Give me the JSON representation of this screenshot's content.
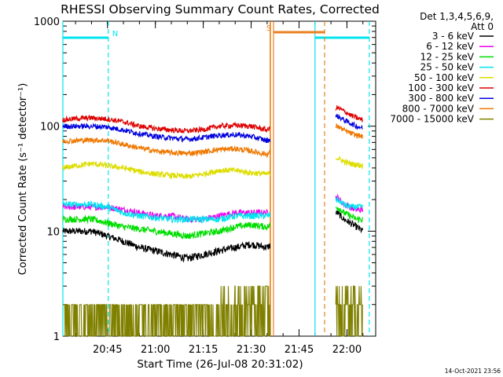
{
  "chart_data": {
    "type": "line",
    "title": "RHESSI Observing Summary Count Rates, Corrected",
    "xlabel": "Start Time (26-Jul-08 20:31:02)",
    "ylabel": "Corrected Count Rate (s⁻¹ detector⁻¹)",
    "yscale": "log",
    "ylim": [
      1,
      1000
    ],
    "xlim": [
      "20:31:02",
      "22:09:00"
    ],
    "x_ticks": [
      "20:45",
      "21:00",
      "21:15",
      "21:30",
      "21:45",
      "22:00"
    ],
    "y_ticks": [
      "1",
      "10",
      "100",
      "1000"
    ],
    "legend_header": [
      "Det 1,3,4,5,6,9,",
      "Att 0"
    ],
    "legend_position": "top-right, outside plot",
    "footer": "14-Oct-2021 23:56",
    "grid": false,
    "markers": [
      {
        "label": "N",
        "color": "#00e5ee",
        "type": "night",
        "start": "20:31:02",
        "end": "20:45:15"
      },
      {
        "label": "",
        "color": "#00e5ee",
        "type": "night",
        "start": "21:50:00",
        "end": "22:07:00"
      },
      {
        "label": "S",
        "color": "#e88020",
        "type": "saa",
        "start": "21:37:00",
        "end": "21:53:00"
      }
    ],
    "data_gaps": [
      {
        "start": "21:36:00",
        "end": "21:56:30"
      }
    ],
    "x": [
      "20:31",
      "20:35",
      "20:40",
      "20:45",
      "20:50",
      "20:55",
      "21:00",
      "21:05",
      "21:10",
      "21:15",
      "21:20",
      "21:25",
      "21:30",
      "21:35",
      "21:57",
      "21:59",
      "22:01",
      "22:03",
      "22:05"
    ],
    "series": [
      {
        "name": "3 - 6 keV",
        "color": "#000000",
        "values": [
          10,
          10,
          10,
          9,
          8,
          7,
          6.5,
          6,
          5.5,
          6,
          6.5,
          7,
          7.5,
          7,
          15,
          13,
          12,
          11,
          10
        ]
      },
      {
        "name": "6 - 12 keV",
        "color": "#ee00ee",
        "values": [
          17,
          17,
          17,
          17,
          16,
          15,
          14,
          14,
          13,
          13,
          14,
          15,
          15,
          15,
          21,
          18,
          17,
          16,
          16
        ]
      },
      {
        "name": "12 - 25 keV",
        "color": "#00dd00",
        "values": [
          13,
          13,
          13,
          12,
          11,
          10.5,
          10,
          9.5,
          9,
          9.5,
          10,
          11,
          11.5,
          11,
          17,
          15,
          14,
          13,
          13
        ]
      },
      {
        "name": "25 - 50 keV",
        "color": "#00e5ee",
        "values": [
          18,
          18,
          18,
          17,
          15,
          14,
          13.5,
          13,
          13,
          13,
          13,
          14,
          14,
          14,
          20,
          18,
          17,
          17,
          17
        ]
      },
      {
        "name": "50 - 100 keV",
        "color": "#dddd00",
        "values": [
          40,
          42,
          44,
          42,
          40,
          37,
          35,
          34,
          33,
          35,
          38,
          38,
          36,
          35,
          50,
          46,
          44,
          43,
          42
        ]
      },
      {
        "name": "100 - 300 keV",
        "color": "#dd0000",
        "values": [
          115,
          118,
          120,
          117,
          110,
          100,
          95,
          92,
          90,
          93,
          100,
          102,
          100,
          92,
          150,
          140,
          128,
          120,
          115
        ]
      },
      {
        "name": "300 - 800 keV",
        "color": "#0000dd",
        "values": [
          100,
          100,
          100,
          98,
          92,
          85,
          80,
          77,
          75,
          78,
          82,
          83,
          80,
          73,
          125,
          115,
          107,
          100,
          96
        ]
      },
      {
        "name": "800 - 7000 keV",
        "color": "#ee7700",
        "values": [
          72,
          73,
          74,
          73,
          67,
          62,
          58,
          56,
          55,
          57,
          60,
          61,
          58,
          54,
          100,
          92,
          86,
          82,
          80
        ]
      },
      {
        "name": "7000 - 15000 keV",
        "color": "#808000",
        "values": [
          2,
          2,
          2,
          2,
          1,
          1,
          1,
          1,
          1,
          1,
          2,
          2,
          2,
          2,
          1,
          1,
          1,
          1,
          1
        ]
      }
    ]
  }
}
